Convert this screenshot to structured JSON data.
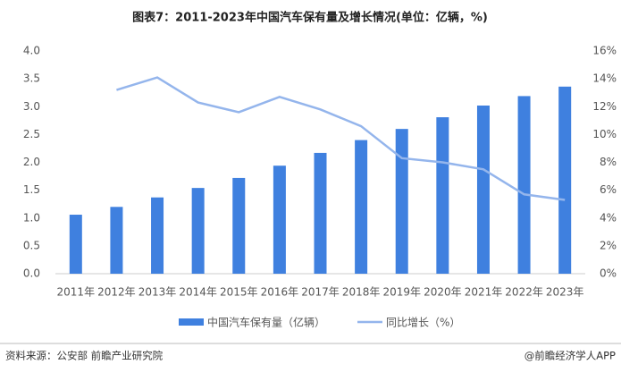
{
  "chart_data": {
    "type": "bar-line",
    "title": "图表7：2011-2023年中国汽车保有量及增长情况(单位：亿辆，%)",
    "categories": [
      "2011年",
      "2012年",
      "2013年",
      "2014年",
      "2015年",
      "2016年",
      "2017年",
      "2018年",
      "2019年",
      "2020年",
      "2021年",
      "2022年",
      "2023年"
    ],
    "series": [
      {
        "name": "中国汽车保有量（亿辆）",
        "type": "bar",
        "color": "#3f80df",
        "values": [
          1.06,
          1.2,
          1.37,
          1.54,
          1.72,
          1.94,
          2.17,
          2.4,
          2.6,
          2.81,
          3.02,
          3.19,
          3.36
        ]
      },
      {
        "name": "同比增长（%）",
        "type": "line",
        "axis": "y2",
        "color": "#94b5ec",
        "values": [
          null,
          13.2,
          14.1,
          12.3,
          11.6,
          12.7,
          11.8,
          10.6,
          8.3,
          8.0,
          7.5,
          5.7,
          5.3
        ]
      }
    ],
    "ylim": [
      0,
      4
    ],
    "yticks": [
      {
        "value": 0,
        "label": "0.0"
      },
      0.5,
      {
        "value": 1,
        "label": "1.0"
      },
      1.5,
      {
        "value": 2,
        "label": "2.0"
      },
      2.5,
      {
        "value": 3,
        "label": "3.0"
      },
      3.5,
      {
        "value": 4,
        "label": "4.0"
      }
    ],
    "y2lim": [
      0,
      16
    ],
    "y2ticks": [
      {
        "value": 0,
        "label": "0%"
      },
      {
        "value": 2,
        "label": "2%"
      },
      {
        "value": 4,
        "label": "4%"
      },
      {
        "value": 6,
        "label": "6%"
      },
      {
        "value": 8,
        "label": "8%"
      },
      {
        "value": 10,
        "label": "10%"
      },
      {
        "value": 12,
        "label": "12%"
      },
      {
        "value": 14,
        "label": "14%"
      },
      {
        "value": 16,
        "label": "16%"
      }
    ],
    "source": "资料来源：公安部 前瞻产业研究院",
    "credit": "@前瞻经济学人APP"
  }
}
